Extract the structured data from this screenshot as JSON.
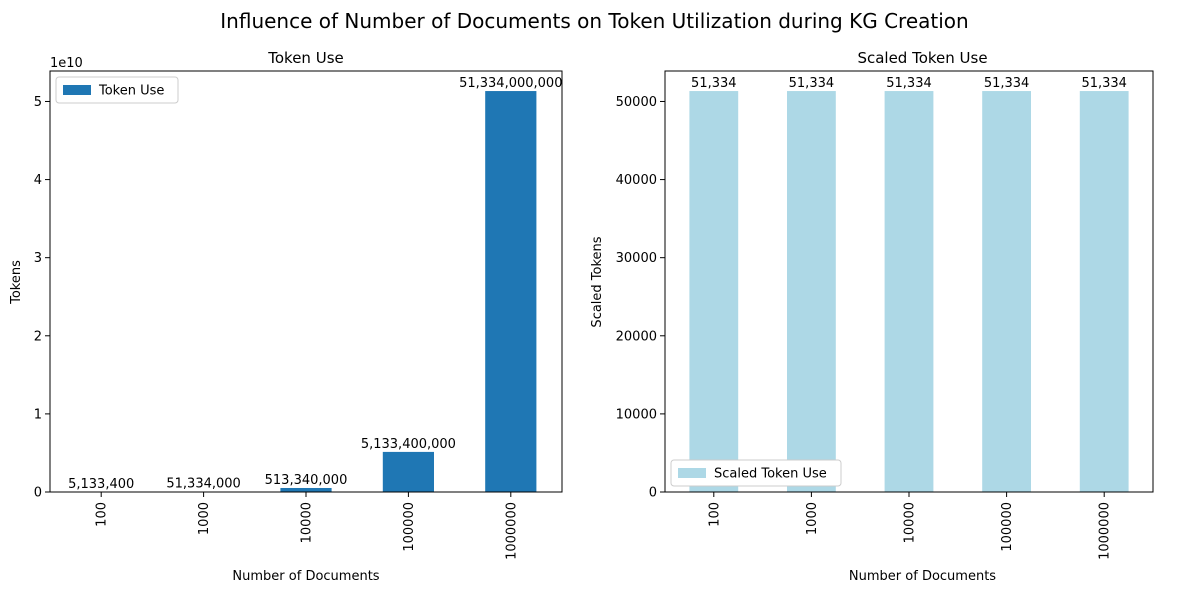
{
  "figure": {
    "title": "Influence of Number of Documents on Token Utilization during KG Creation"
  },
  "chart_data": [
    {
      "type": "bar",
      "title": "Token Use",
      "xlabel": "Number of Documents",
      "ylabel": "Tokens",
      "offset_label": "1e10",
      "categories": [
        "100",
        "1000",
        "10000",
        "100000",
        "1000000"
      ],
      "series": [
        {
          "name": "Token Use",
          "color": "#1f77b4",
          "values": [
            5133400,
            51334000,
            513340000,
            5133400000,
            51334000000
          ],
          "labels": [
            "5,133,400",
            "51,334,000",
            "513,340,000",
            "5,133,400,000",
            "51,334,000,000"
          ]
        }
      ],
      "ylim": [
        0,
        53900700000
      ],
      "yticks": [
        0,
        10000000000,
        20000000000,
        30000000000,
        40000000000,
        50000000000
      ],
      "ytick_labels": [
        "0",
        "1",
        "2",
        "3",
        "4",
        "5"
      ],
      "legend": "upper left",
      "grid": false
    },
    {
      "type": "bar",
      "title": "Scaled Token Use",
      "xlabel": "Number of Documents",
      "ylabel": "Scaled Tokens",
      "categories": [
        "100",
        "1000",
        "10000",
        "100000",
        "1000000"
      ],
      "series": [
        {
          "name": "Scaled Token Use",
          "color": "#add8e6",
          "values": [
            51334,
            51334,
            51334,
            51334,
            51334
          ],
          "labels": [
            "51,334",
            "51,334",
            "51,334",
            "51,334",
            "51,334"
          ]
        }
      ],
      "ylim": [
        0,
        53900.7
      ],
      "yticks": [
        0,
        10000,
        20000,
        30000,
        40000,
        50000
      ],
      "ytick_labels": [
        "0",
        "10000",
        "20000",
        "30000",
        "40000",
        "50000"
      ],
      "legend": "lower left",
      "grid": false
    }
  ]
}
